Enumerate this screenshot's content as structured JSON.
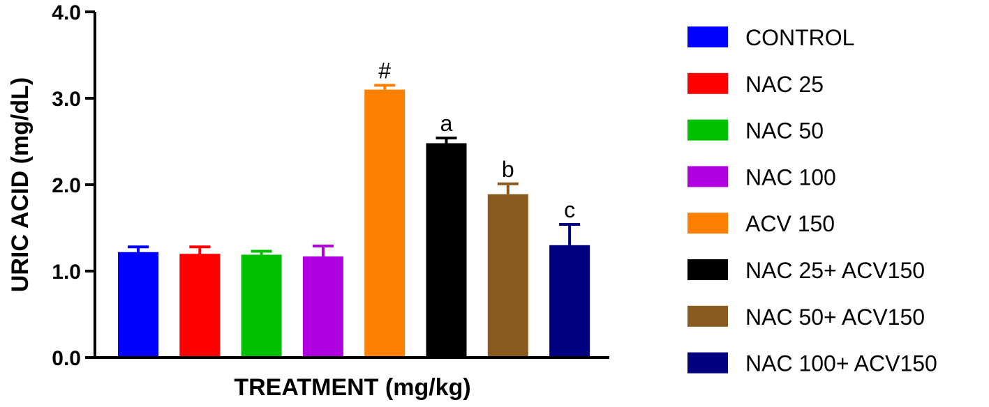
{
  "chart_data": {
    "type": "bar",
    "xlabel": "TREATMENT (mg/kg)",
    "ylabel": "URIC ACID (mg/dL)",
    "ylim": [
      0,
      4
    ],
    "yticks": [
      "0.0",
      "1.0",
      "2.0",
      "3.0",
      "4.0"
    ],
    "legend_position": "right",
    "grid": false,
    "series": [
      {
        "name": "CONTROL",
        "value": 1.22,
        "error": 0.06,
        "color": "#0000ff",
        "annotation": ""
      },
      {
        "name": "NAC 25",
        "value": 1.2,
        "error": 0.08,
        "color": "#ff0000",
        "annotation": ""
      },
      {
        "name": "NAC 50",
        "value": 1.19,
        "error": 0.04,
        "color": "#00c000",
        "annotation": ""
      },
      {
        "name": "NAC 100",
        "value": 1.17,
        "error": 0.12,
        "color": "#b000e0",
        "annotation": ""
      },
      {
        "name": "ACV 150",
        "value": 3.1,
        "error": 0.05,
        "color": "#ff8000",
        "annotation": "#"
      },
      {
        "name": "NAC 25+ ACV150",
        "value": 2.48,
        "error": 0.06,
        "color": "#000000",
        "annotation": "a"
      },
      {
        "name": "NAC 50+ ACV150",
        "value": 1.89,
        "error": 0.12,
        "color": "#8b5a1e",
        "annotation": "b"
      },
      {
        "name": "NAC 100+ ACV150",
        "value": 1.3,
        "error": 0.24,
        "color": "#000080",
        "annotation": "c"
      }
    ]
  }
}
